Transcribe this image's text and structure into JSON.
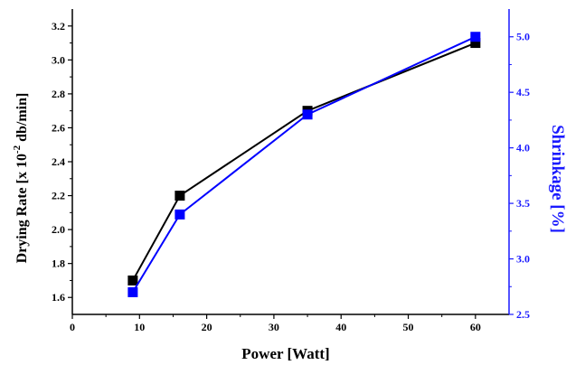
{
  "chart_data": {
    "type": "line",
    "xlabel": "Power [Watt]",
    "ylabel_left": {
      "prefix": "Drying Rate [x 10",
      "superscript": "-2",
      "suffix": " db/min]"
    },
    "ylabel_right": "Shrinkage [%]",
    "xlim": [
      0,
      65
    ],
    "ylim_left": [
      1.5,
      3.3
    ],
    "ylim_right": [
      2.5,
      5.25
    ],
    "xticks": [
      0,
      10,
      20,
      30,
      40,
      50,
      60
    ],
    "yticks_left": [
      1.6,
      1.8,
      2.0,
      2.2,
      2.4,
      2.6,
      2.8,
      3.0,
      3.2
    ],
    "yticks_right": [
      2.5,
      3.0,
      3.5,
      4.0,
      4.5,
      5.0
    ],
    "grid": false,
    "series": [
      {
        "axis": "left",
        "color": "#000000",
        "marker": "square",
        "x": [
          9,
          16,
          35,
          60
        ],
        "y": [
          1.7,
          2.2,
          2.7,
          3.1
        ]
      },
      {
        "axis": "right",
        "color": "#0000ff",
        "marker": "square",
        "x": [
          9,
          16,
          35,
          60
        ],
        "y": [
          2.7,
          3.4,
          4.3,
          5.0
        ]
      }
    ],
    "colors": {
      "left_axis": "#000000",
      "right_axis": "#1a1aff"
    }
  }
}
